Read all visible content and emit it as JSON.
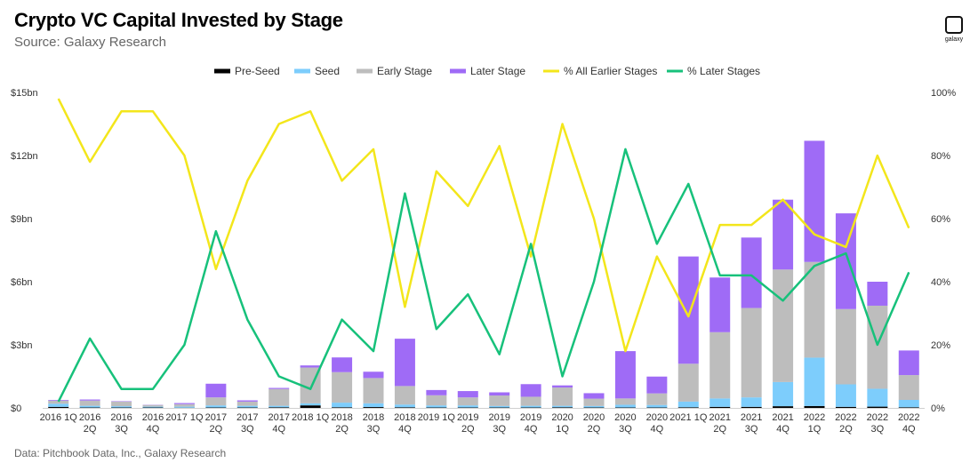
{
  "header": {
    "title": "Crypto VC Capital Invested by Stage",
    "subtitle": "Source: Galaxy Research"
  },
  "logo": {
    "text": "galaxy",
    "icon": "galaxy-logo-icon"
  },
  "footnote": "Data: Pitchbook Data, Inc., Galaxy Research",
  "chart_data": {
    "type": "bar",
    "stacked": true,
    "title": "Crypto VC Capital Invested by Stage",
    "subtitle": "Source: Galaxy Research",
    "xlabel": "",
    "ylabel": "",
    "legend_position": "top-center",
    "grid": false,
    "categories": [
      "2016 1Q",
      "2016 2Q",
      "2016 3Q",
      "2016 4Q",
      "2017 1Q",
      "2017 2Q",
      "2017 3Q",
      "2017 4Q",
      "2018 1Q",
      "2018 2Q",
      "2018 3Q",
      "2018 4Q",
      "2019 1Q",
      "2019 2Q",
      "2019 3Q",
      "2019 4Q",
      "2020 1Q",
      "2020 2Q",
      "2020 3Q",
      "2020 4Q",
      "2021 1Q",
      "2021 2Q",
      "2021 3Q",
      "2021 4Q",
      "2022 1Q",
      "2022 2Q",
      "2022 3Q",
      "2022 4Q"
    ],
    "category_labels": [
      [
        "2016 1Q"
      ],
      [
        "2016",
        "2Q"
      ],
      [
        "2016",
        "3Q"
      ],
      [
        "2016",
        "4Q"
      ],
      [
        "2017 1Q"
      ],
      [
        "2017",
        "2Q"
      ],
      [
        "2017",
        "3Q"
      ],
      [
        "2017",
        "4Q"
      ],
      [
        "2018 1Q"
      ],
      [
        "2018",
        "2Q"
      ],
      [
        "2018",
        "3Q"
      ],
      [
        "2018",
        "4Q"
      ],
      [
        "2019 1Q"
      ],
      [
        "2019",
        "2Q"
      ],
      [
        "2019",
        "3Q"
      ],
      [
        "2019",
        "4Q"
      ],
      [
        "2020",
        "1Q"
      ],
      [
        "2020",
        "2Q"
      ],
      [
        "2020",
        "3Q"
      ],
      [
        "2020",
        "4Q"
      ],
      [
        "2021 1Q"
      ],
      [
        "2021",
        "2Q"
      ],
      [
        "2021",
        "3Q"
      ],
      [
        "2021",
        "4Q"
      ],
      [
        "2022",
        "1Q"
      ],
      [
        "2022",
        "2Q"
      ],
      [
        "2022",
        "3Q"
      ],
      [
        "2022",
        "4Q"
      ]
    ],
    "y_left": {
      "ylim": [
        0,
        15
      ],
      "ticks": [
        0,
        3,
        6,
        9,
        12,
        15
      ],
      "tick_labels": [
        "$0",
        "$3bn",
        "$6bn",
        "$9bn",
        "$12bn",
        "$15bn"
      ],
      "unit": "$bn"
    },
    "y_right": {
      "ylim": [
        0,
        100
      ],
      "ticks": [
        0,
        20,
        40,
        60,
        80,
        100
      ],
      "tick_labels": [
        "0%",
        "20%",
        "40%",
        "60%",
        "80%",
        "100%"
      ],
      "unit": "%"
    },
    "series": [
      {
        "name": "Pre-Seed",
        "type": "bar",
        "axis": "left",
        "color": "#000000",
        "values": [
          0.05,
          0.02,
          0.02,
          0.02,
          0.01,
          0.02,
          0.02,
          0.03,
          0.12,
          0.03,
          0.04,
          0.03,
          0.02,
          0.02,
          0.02,
          0.02,
          0.03,
          0.02,
          0.02,
          0.02,
          0.03,
          0.05,
          0.05,
          0.08,
          0.09,
          0.05,
          0.06,
          0.03
        ]
      },
      {
        "name": "Seed",
        "type": "bar",
        "axis": "left",
        "color": "#7dcdfc",
        "values": [
          0.15,
          0.08,
          0.06,
          0.04,
          0.05,
          0.1,
          0.08,
          0.07,
          0.1,
          0.22,
          0.18,
          0.13,
          0.1,
          0.1,
          0.07,
          0.08,
          0.07,
          0.07,
          0.13,
          0.12,
          0.27,
          0.4,
          0.45,
          1.15,
          2.3,
          1.07,
          0.85,
          0.35
        ]
      },
      {
        "name": "Early Stage",
        "type": "bar",
        "axis": "left",
        "color": "#bdbdbd",
        "values": [
          0.15,
          0.25,
          0.22,
          0.08,
          0.12,
          0.38,
          0.2,
          0.8,
          1.7,
          1.45,
          1.2,
          0.88,
          0.48,
          0.38,
          0.5,
          0.43,
          0.87,
          0.35,
          0.3,
          0.55,
          1.8,
          3.15,
          4.25,
          5.35,
          4.55,
          3.58,
          3.95,
          1.18
        ]
      },
      {
        "name": "Later Stage",
        "type": "bar",
        "axis": "left",
        "color": "#9f6bf6",
        "values": [
          0.03,
          0.05,
          0.02,
          0.01,
          0.05,
          0.65,
          0.06,
          0.05,
          0.1,
          0.7,
          0.3,
          2.25,
          0.25,
          0.3,
          0.15,
          0.6,
          0.1,
          0.26,
          2.25,
          0.8,
          5.1,
          2.6,
          3.35,
          3.32,
          5.76,
          4.55,
          1.14,
          1.17
        ]
      },
      {
        "name": "% All Earlier Stages",
        "type": "line",
        "axis": "right",
        "color": "#f3e61b",
        "values": [
          98,
          78,
          94,
          94,
          80,
          44,
          72,
          90,
          94,
          72,
          82,
          32,
          75,
          64,
          83,
          48,
          90,
          60,
          18,
          48,
          29,
          58,
          58,
          66,
          55,
          51,
          80,
          57
        ]
      },
      {
        "name": "% Later Stages",
        "type": "line",
        "axis": "right",
        "color": "#17c17b",
        "values": [
          2,
          22,
          6,
          6,
          20,
          56,
          28,
          10,
          6,
          28,
          18,
          68,
          25,
          36,
          17,
          52,
          10,
          40,
          82,
          52,
          71,
          42,
          42,
          34,
          45,
          49,
          20,
          43
        ]
      }
    ]
  }
}
